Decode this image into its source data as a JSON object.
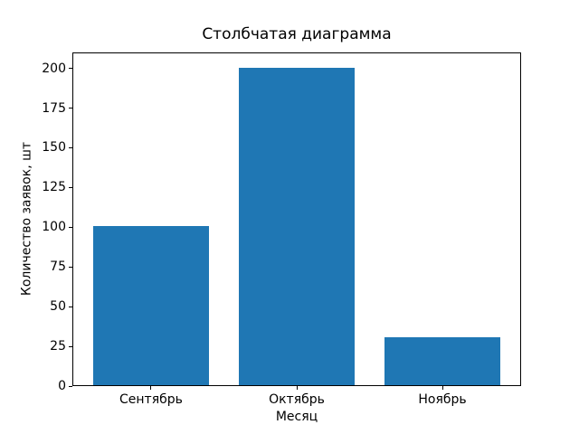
{
  "chart_data": {
    "type": "bar",
    "title": "Столбчатая диаграмма",
    "xlabel": "Месяц",
    "ylabel": "Количество заявок, шт",
    "categories": [
      "Сентябрь",
      "Октябрь",
      "Ноябрь"
    ],
    "values": [
      100,
      200,
      30
    ],
    "ylim": [
      0,
      210
    ],
    "yticks": [
      0,
      25,
      50,
      75,
      100,
      125,
      150,
      175,
      200
    ],
    "xlim": [
      -0.54,
      2.54
    ],
    "bar_width_units": 0.8,
    "bar_color": "#1f77b4",
    "axis_color": "#000000",
    "background_color": "#ffffff",
    "grid": false,
    "legend": null
  }
}
